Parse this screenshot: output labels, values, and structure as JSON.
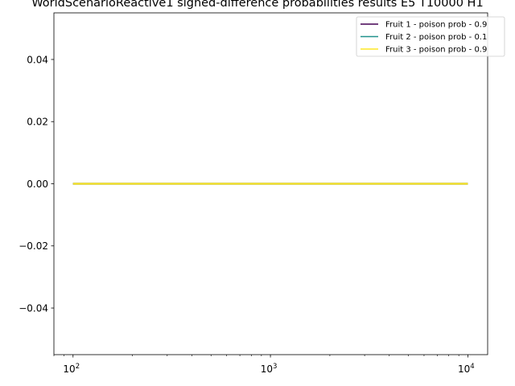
{
  "chart_data": {
    "type": "line",
    "title": "WorldScenarioReactive1 signed-difference probabilities results E5 T10000 H1",
    "xlabel": "",
    "ylabel": "",
    "xscale": "log",
    "xlim": [
      80,
      12600
    ],
    "ylim": [
      -0.055,
      0.055
    ],
    "x_ticks": [
      {
        "base": "10",
        "exp": "2",
        "value": 100
      },
      {
        "base": "10",
        "exp": "3",
        "value": 1000
      },
      {
        "base": "10",
        "exp": "4",
        "value": 10000
      }
    ],
    "y_ticks": [
      {
        "label": "0.04",
        "value": 0.04
      },
      {
        "label": "0.02",
        "value": 0.02
      },
      {
        "label": "0.00",
        "value": 0.0
      },
      {
        "label": "−0.02",
        "value": -0.02
      },
      {
        "label": "−0.04",
        "value": -0.04
      }
    ],
    "legend_position": "top-right",
    "grid": false,
    "x": [
      100,
      10000
    ],
    "series": [
      {
        "name": "Fruit 1 - poison prob  - 0.9",
        "color": "#440154",
        "values": [
          0,
          0
        ]
      },
      {
        "name": "Fruit 2 - poison prob  - 0.1",
        "color": "#21918c",
        "values": [
          0,
          0
        ]
      },
      {
        "name": "Fruit 3 - poison prob  - 0.9",
        "color": "#fde725",
        "values": [
          0,
          0
        ]
      }
    ]
  }
}
